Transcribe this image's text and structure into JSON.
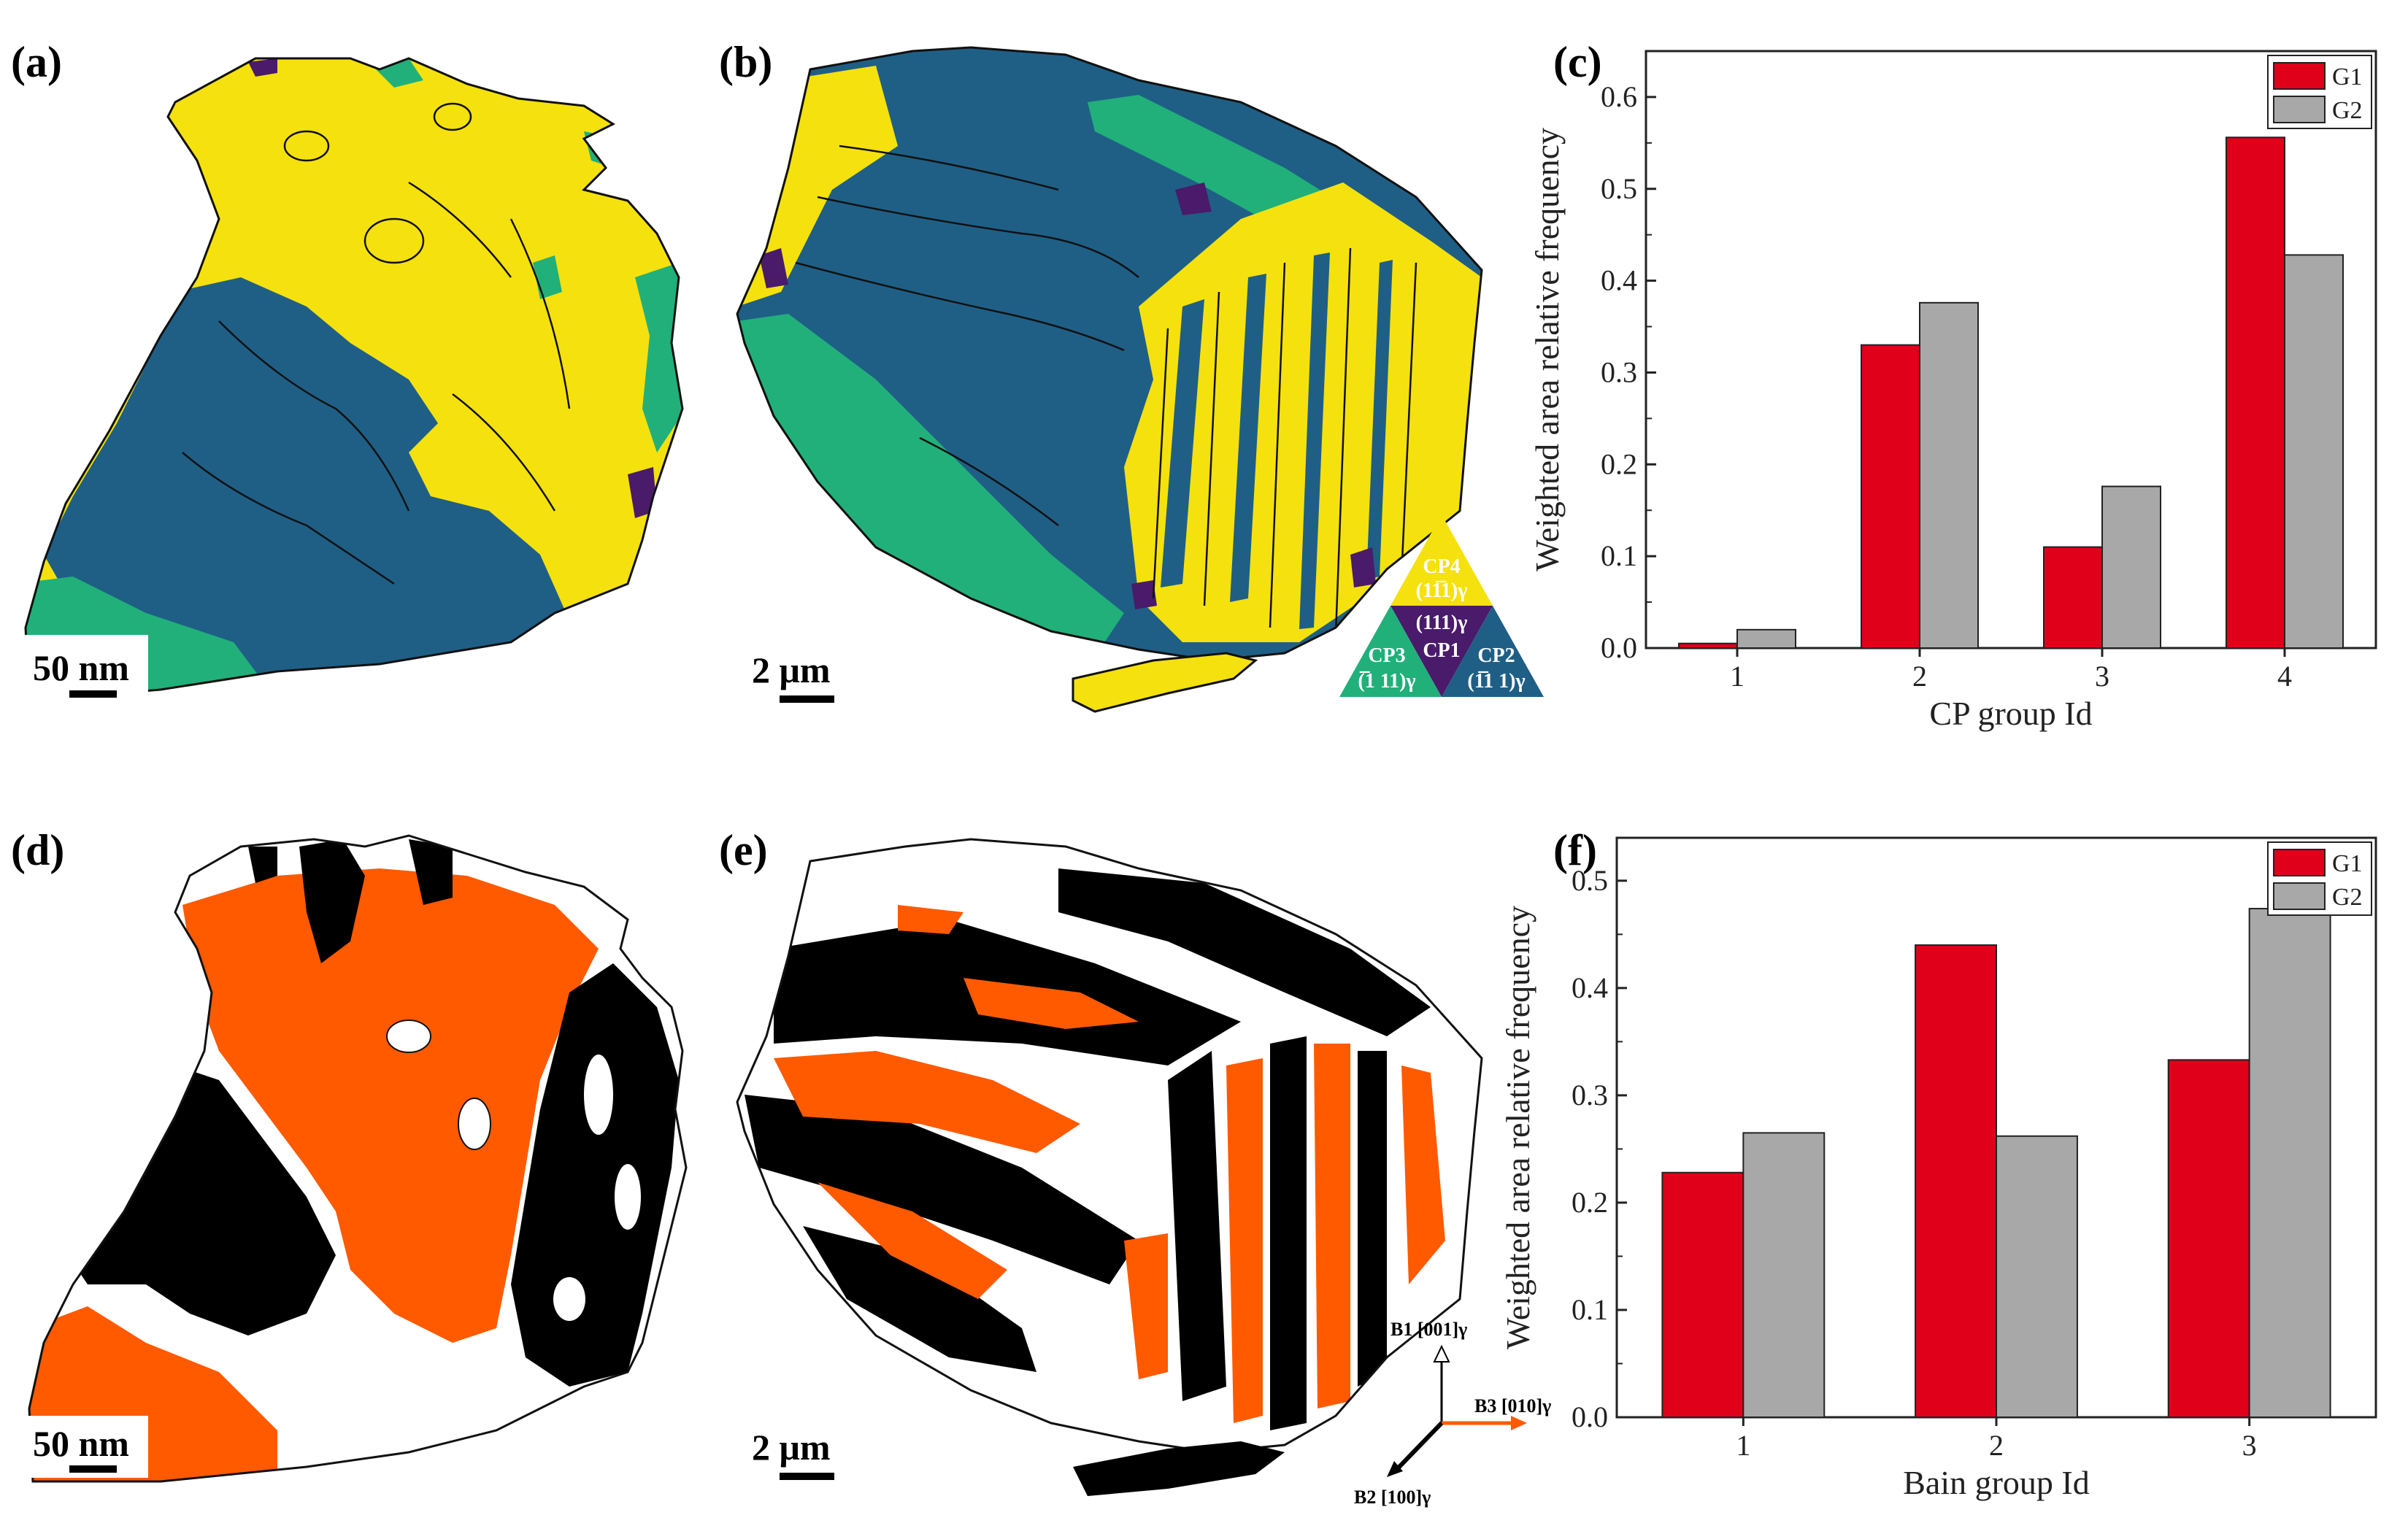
{
  "panels": {
    "a": {
      "label": "(a)",
      "scalebar": "50 nm"
    },
    "b": {
      "label": "(b)",
      "scalebar": "2 μm"
    },
    "c": {
      "label": "(c)"
    },
    "d": {
      "label": "(d)",
      "scalebar": "50 nm"
    },
    "e": {
      "label": "(e)",
      "scalebar": "2 μm"
    },
    "f": {
      "label": "(f)"
    }
  },
  "colors": {
    "cp1": "#4a1a6b",
    "cp2": "#1f5f86",
    "cp3": "#21b07a",
    "cp4": "#f5e10e",
    "bain_orange": "#ff5a00",
    "bain_black": "#000000",
    "bain_white": "#ffffff",
    "g1": "#e0001a",
    "g2": "#a8a8a8"
  },
  "cp_legend": {
    "cp4": "CP4",
    "cp4_plane": "(11̅1)γ",
    "cp1_plane": "(111)γ",
    "cp1": "CP1",
    "cp3": "CP3",
    "cp3_plane": "(̅1 11)γ",
    "cp2": "CP2",
    "cp2_plane": "(1̅1 1)γ"
  },
  "bain_axes": {
    "b1": "B1 [001]γ",
    "b2": "B2 [100]γ",
    "b3": "B3 [010]γ"
  },
  "chart_data": [
    {
      "type": "bar",
      "panel": "c",
      "categories": [
        "1",
        "2",
        "3",
        "4"
      ],
      "series": [
        {
          "name": "G1",
          "values": [
            0.005,
            0.33,
            0.11,
            0.556
          ]
        },
        {
          "name": "G2",
          "values": [
            0.02,
            0.376,
            0.176,
            0.428
          ]
        }
      ],
      "xlabel": "CP group Id",
      "ylabel": "Weighted area relative frequency",
      "ylim": [
        0,
        0.65
      ],
      "yticks": [
        "0.0",
        "0.1",
        "0.2",
        "0.3",
        "0.4",
        "0.5",
        "0.6"
      ],
      "legend": "top-right"
    },
    {
      "type": "bar",
      "panel": "f",
      "categories": [
        "1",
        "2",
        "3"
      ],
      "series": [
        {
          "name": "G1",
          "values": [
            0.228,
            0.44,
            0.333
          ]
        },
        {
          "name": "G2",
          "values": [
            0.265,
            0.262,
            0.474
          ]
        }
      ],
      "xlabel": "Bain group Id",
      "ylabel": "Weighted area relative frequency",
      "ylim": [
        0,
        0.54
      ],
      "yticks": [
        "0.0",
        "0.1",
        "0.2",
        "0.3",
        "0.4",
        "0.5"
      ],
      "legend": "top-right"
    }
  ]
}
